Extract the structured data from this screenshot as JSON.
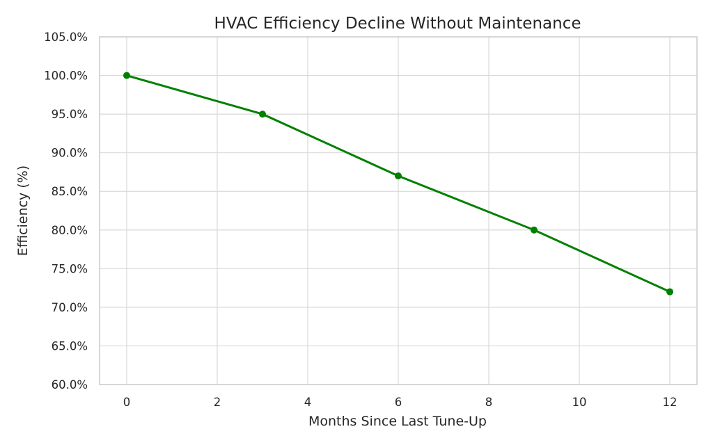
{
  "chart_data": {
    "type": "line",
    "title": "HVAC Efficiency Decline Without Maintenance",
    "xlabel": "Months Since Last Tune-Up",
    "ylabel": "Efficiency (%)",
    "xlim": [
      -0.6,
      12.6
    ],
    "ylim": [
      60,
      105
    ],
    "x_ticks": [
      0,
      2,
      4,
      6,
      8,
      10,
      12
    ],
    "x_tick_labels": [
      "0",
      "2",
      "4",
      "6",
      "8",
      "10",
      "12"
    ],
    "y_ticks": [
      60,
      65,
      70,
      75,
      80,
      85,
      90,
      95,
      100,
      105
    ],
    "y_tick_labels": [
      "60.0%",
      "65.0%",
      "70.0%",
      "75.0%",
      "80.0%",
      "85.0%",
      "90.0%",
      "95.0%",
      "100.0%",
      "105.0%"
    ],
    "grid": true,
    "legend": "none",
    "series": [
      {
        "x": [
          0,
          3,
          6,
          9,
          12
        ],
        "values": [
          100,
          95,
          87,
          80,
          72
        ],
        "color": "#008000",
        "marker": "circle"
      }
    ]
  }
}
